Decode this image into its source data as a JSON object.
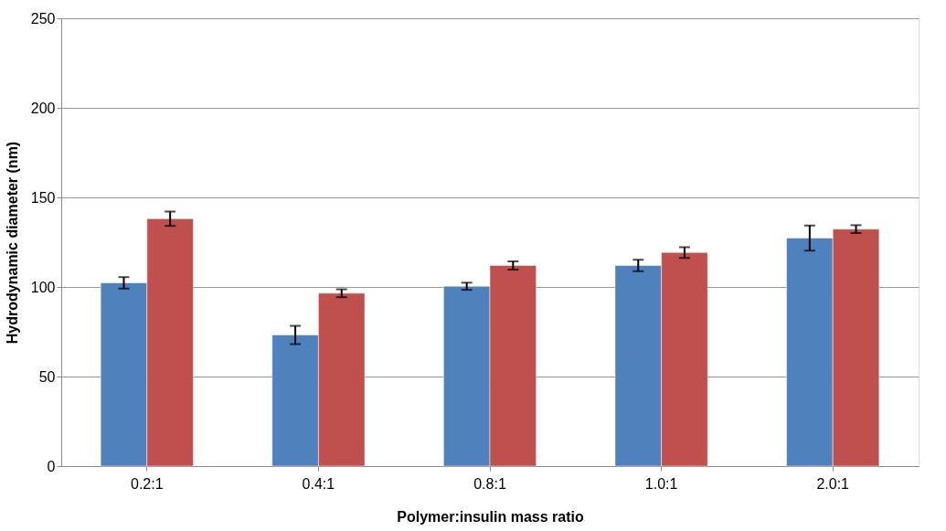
{
  "chart_data": {
    "type": "bar",
    "xlabel": "Polymer:insulin mass ratio",
    "ylabel": "Hydrodynamic diameter (nm)",
    "categories": [
      "0.2:1",
      "0.4:1",
      "0.8:1",
      "1.0:1",
      "2.0:1"
    ],
    "series": [
      {
        "color": "#4f81bd",
        "values": [
          102.3,
          73.2,
          100.4,
          112,
          127.3
        ],
        "errors": [
          3.2,
          5.1,
          2,
          3.2,
          7
        ]
      },
      {
        "color": "#c0504d",
        "values": [
          138.1,
          96.5,
          112,
          119.2,
          132.3
        ],
        "errors": [
          4,
          2.2,
          2.3,
          3,
          2.2
        ]
      }
    ],
    "ylim": [
      0,
      250
    ],
    "yticks": [
      0,
      50,
      100,
      150,
      200,
      250
    ],
    "grid": "y",
    "legend": false
  }
}
